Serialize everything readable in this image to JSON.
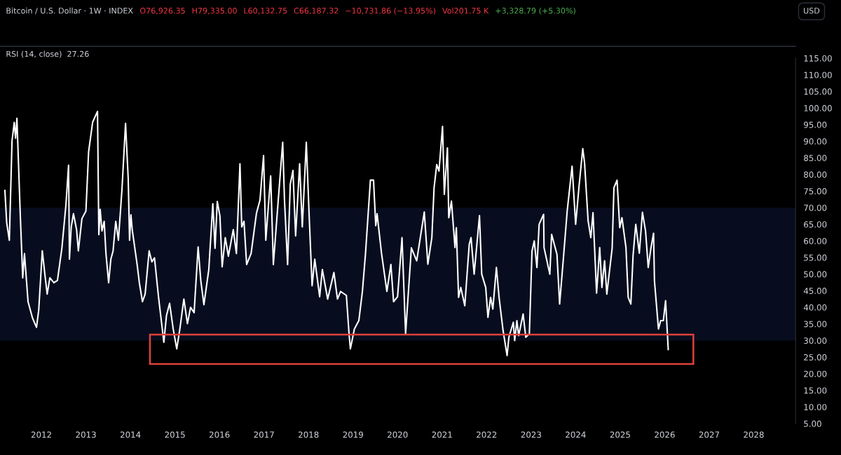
{
  "chart_data": {
    "type": "line",
    "title": "Bitcoin / U.S. Dollar · 1W · INDEX",
    "subtitle": "RSI (14, close)  27.26",
    "annotations": [
      "O76,926.35",
      "H79,335.00",
      "L60,132.75",
      "C66,187.32",
      "−10,731.86 (−13.95%)",
      "Vol201.75 K",
      "+3,328.79 (+5.30%)",
      "USD"
    ],
    "x": [
      2011.18,
      2011.22,
      2011.28,
      2011.34,
      2011.39,
      2011.42,
      2011.45,
      2011.52,
      2011.58,
      2011.62,
      2011.66,
      2011.7,
      2011.8,
      2011.89,
      2011.94,
      2012.02,
      2012.08,
      2012.13,
      2012.19,
      2012.28,
      2012.36,
      2012.46,
      2012.55,
      2012.61,
      2012.63,
      2012.67,
      2012.72,
      2012.79,
      2012.83,
      2012.91,
      2013.0,
      2013.06,
      2013.15,
      2013.26,
      2013.29,
      2013.32,
      2013.36,
      2013.41,
      2013.45,
      2013.51,
      2013.56,
      2013.61,
      2013.67,
      2013.73,
      2013.81,
      2013.89,
      2013.95,
      2013.98,
      2014.01,
      2014.04,
      2014.15,
      2014.2,
      2014.27,
      2014.33,
      2014.42,
      2014.48,
      2014.54,
      2014.63,
      2014.75,
      2014.81,
      2014.88,
      2014.96,
      2015.04,
      2015.11,
      2015.2,
      2015.28,
      2015.35,
      2015.43,
      2015.52,
      2015.58,
      2015.65,
      2015.76,
      2015.85,
      2015.9,
      2015.95,
      2016.01,
      2016.06,
      2016.13,
      2016.2,
      2016.31,
      2016.38,
      2016.46,
      2016.5,
      2016.55,
      2016.61,
      2016.71,
      2016.83,
      2016.91,
      2016.99,
      2017.04,
      2017.15,
      2017.21,
      2017.32,
      2017.42,
      2017.46,
      2017.53,
      2017.59,
      2017.65,
      2017.71,
      2017.8,
      2017.86,
      2017.95,
      2018.01,
      2018.08,
      2018.14,
      2018.25,
      2018.31,
      2018.43,
      2018.57,
      2018.65,
      2018.72,
      2018.85,
      2018.91,
      2018.94,
      2019.03,
      2019.13,
      2019.21,
      2019.28,
      2019.39,
      2019.46,
      2019.51,
      2019.54,
      2019.64,
      2019.76,
      2019.85,
      2019.91,
      2020.0,
      2020.1,
      2020.18,
      2020.31,
      2020.43,
      2020.6,
      2020.68,
      2020.77,
      2020.82,
      2020.88,
      2020.93,
      2021.01,
      2021.05,
      2021.12,
      2021.15,
      2021.21,
      2021.29,
      2021.32,
      2021.37,
      2021.42,
      2021.51,
      2021.61,
      2021.65,
      2021.72,
      2021.84,
      2021.89,
      2021.98,
      2022.03,
      2022.09,
      2022.14,
      2022.22,
      2022.28,
      2022.37,
      2022.46,
      2022.5,
      2022.6,
      2022.63,
      2022.68,
      2022.72,
      2022.82,
      2022.88,
      2022.96,
      2023.02,
      2023.07,
      2023.13,
      2023.18,
      2023.28,
      2023.29,
      2023.42,
      2023.46,
      2023.58,
      2023.64,
      2023.72,
      2023.81,
      2023.92,
      2024.0,
      2024.08,
      2024.16,
      2024.2,
      2024.28,
      2024.34,
      2024.39,
      2024.47,
      2024.54,
      2024.59,
      2024.65,
      2024.7,
      2024.82,
      2024.86,
      2024.93,
      2024.99,
      2025.04,
      2025.13,
      2025.18,
      2025.24,
      2025.29,
      2025.35,
      2025.43,
      2025.5,
      2025.57,
      2025.63,
      2025.69,
      2025.75,
      2025.77,
      2025.86,
      2025.91,
      2025.97,
      2026.02,
      2026.08
    ],
    "series": [
      {
        "color": "#ffffff",
        "values": [
          75.2,
          65.5,
          60.2,
          90.1,
          95.7,
          90.9,
          96.9,
          69.9,
          48.9,
          56.2,
          48.9,
          41.7,
          36.8,
          34,
          39.2,
          57,
          49.7,
          44,
          48.9,
          47.4,
          48.1,
          57.8,
          70.7,
          82.8,
          54.5,
          64.2,
          68.2,
          63.4,
          57,
          66.7,
          69,
          86.8,
          95.7,
          99,
          61.9,
          69.5,
          63,
          65.9,
          56.2,
          47.4,
          54.5,
          57,
          65.9,
          60.2,
          75.6,
          95.4,
          78.7,
          60.2,
          67.9,
          63.4,
          52.9,
          47.4,
          41.7,
          44,
          57,
          53.7,
          54.9,
          43.2,
          29.5,
          37.6,
          41.2,
          33.5,
          27.5,
          33.5,
          42.5,
          35.1,
          40,
          38.4,
          58.2,
          48.1,
          40.8,
          51.4,
          71.2,
          57.8,
          71.9,
          67.5,
          52.2,
          61,
          55.4,
          63.4,
          56.2,
          83.2,
          64.2,
          65.9,
          52.9,
          56.2,
          68.3,
          72.3,
          85.7,
          60.2,
          79.6,
          52.9,
          72.3,
          89.7,
          72.3,
          52.9,
          77.1,
          81.2,
          61.5,
          83.2,
          64.2,
          89.7,
          69,
          46.5,
          54.5,
          43.2,
          51.4,
          42.5,
          50.5,
          42.5,
          44.8,
          43.6,
          32,
          27.5,
          33.5,
          36,
          44.8,
          56.2,
          78.3,
          78.3,
          64.6,
          68.2,
          56.2,
          44.8,
          52.9,
          41.7,
          43.2,
          61,
          32,
          57.9,
          54,
          68.7,
          53,
          61,
          76,
          83,
          81,
          94.5,
          74,
          88,
          67,
          72,
          58,
          64,
          43,
          46,
          40.5,
          59,
          61,
          50,
          67.6,
          50,
          46,
          37,
          43,
          39.5,
          52,
          43,
          33,
          25.5,
          31,
          35.5,
          30,
          36,
          31.5,
          38,
          31,
          32,
          57,
          60,
          52,
          65,
          68,
          58,
          50,
          62,
          56,
          41,
          54,
          69,
          82.5,
          65,
          77,
          87.8,
          83.5,
          66,
          61,
          68.5,
          44.3,
          58,
          46,
          54,
          44,
          57.8,
          76,
          78.3,
          64,
          67,
          58,
          43,
          41,
          55.7,
          65,
          56.3,
          68.6,
          63,
          52,
          57.8,
          62.3,
          48,
          33.5,
          36,
          36,
          42,
          27.3
        ]
      }
    ],
    "bands": [
      {
        "axis": "y",
        "from": 30,
        "to": 70,
        "color": "#070d1e"
      }
    ],
    "xlim": [
      2011.07,
      2028.94
    ],
    "xticks": [
      2012,
      2013,
      2014,
      2015,
      2016,
      2017,
      2018,
      2019,
      2020,
      2021,
      2022,
      2023,
      2024,
      2025,
      2026,
      2027,
      2028
    ],
    "ylim": [
      5,
      115
    ],
    "yticks": [
      {
        "value": 5,
        "label": "5.00"
      },
      {
        "value": 10,
        "label": "10.00"
      },
      {
        "value": 15,
        "label": "15.00"
      },
      {
        "value": 20,
        "label": "20.00"
      },
      {
        "value": 25,
        "label": "25.00"
      },
      {
        "value": 30,
        "label": "30.00"
      },
      {
        "value": 35,
        "label": "35.00"
      },
      {
        "value": 40,
        "label": "40.00"
      },
      {
        "value": 45,
        "label": "45.00"
      },
      {
        "value": 50,
        "label": "50.00"
      },
      {
        "value": 55,
        "label": "55.00"
      },
      {
        "value": 60,
        "label": "60.00"
      },
      {
        "value": 65,
        "label": "65.00"
      },
      {
        "value": 70,
        "label": "70.00"
      },
      {
        "value": 75,
        "label": "75.00"
      },
      {
        "value": 80,
        "label": "80.00"
      },
      {
        "value": 85,
        "label": "85.00"
      },
      {
        "value": 90,
        "label": "90.00"
      },
      {
        "value": 95,
        "label": "95.00"
      },
      {
        "value": 100,
        "label": "100.00"
      },
      {
        "value": 105,
        "label": "105.00"
      },
      {
        "value": 110,
        "label": "110.00"
      },
      {
        "value": 115,
        "label": "115.00"
      }
    ],
    "grid": false,
    "line_style": "solid"
  }
}
